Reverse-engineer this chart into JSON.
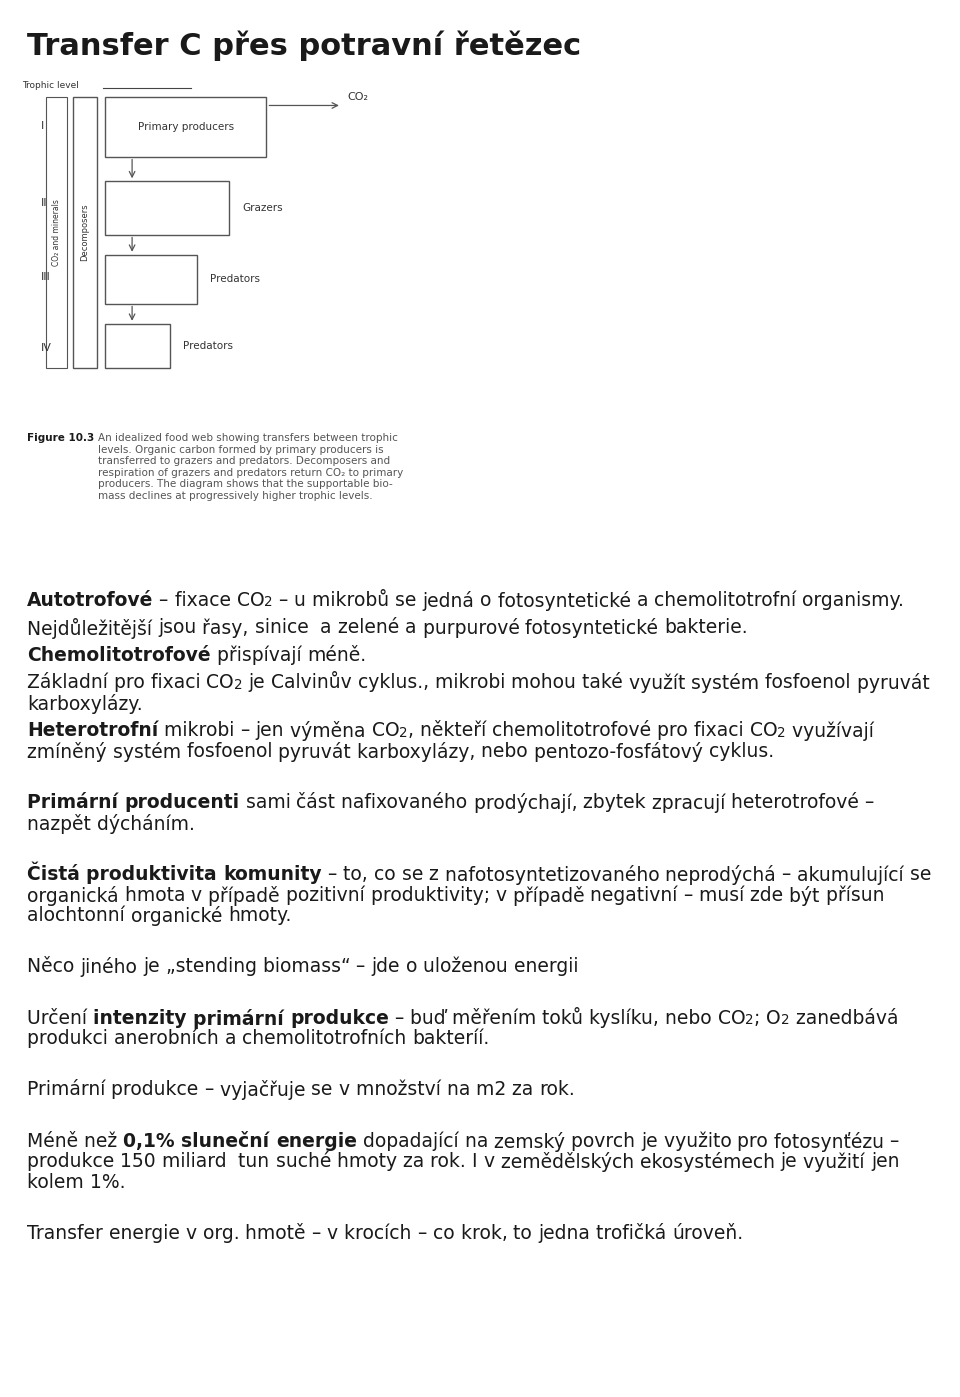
{
  "title": "Transfer C přes potravní řetězec",
  "title_fontsize": 22,
  "bg_color": "#ffffff",
  "text_color": "#1a1a1a",
  "body_fontsize": 13.5,
  "fig_caption_bold": "Figure 10.3",
  "fig_caption_text": "An idealized food web showing transfers between trophic\nlevels. Organic carbon formed by primary producers is\ntransferred to grazers and predators. Decomposers and\nrespiration of grazers and predators return CO₂ to primary\nproducers. The diagram shows that the supportable bio-\nmass declines at progressively higher trophic levels.",
  "paragraphs": [
    {
      "parts": [
        {
          "text": "Autotrofové",
          "bold": true,
          "sub": false
        },
        {
          "text": " – fixace CO",
          "bold": false,
          "sub": false
        },
        {
          "text": "2",
          "bold": false,
          "sub": true
        },
        {
          "text": " – u mikrobů se jedná o fotosyntetické a chemolitotrofní organismy.",
          "bold": false,
          "sub": false
        }
      ],
      "space_before": 0.025
    },
    {
      "parts": [
        {
          "text": "Nejdůležitější jsou řasy, sinice  a zelené a purpurové fotosyntetické bakterie.",
          "bold": false,
          "sub": false
        }
      ],
      "space_before": 0.005
    },
    {
      "parts": [
        {
          "text": "Chemolitotrofové",
          "bold": true,
          "sub": false
        },
        {
          "text": " přispívají méně.",
          "bold": false,
          "sub": false
        }
      ],
      "space_before": 0.005
    },
    {
      "parts": [
        {
          "text": "Základní pro fixaci CO",
          "bold": false,
          "sub": false
        },
        {
          "text": "2",
          "bold": false,
          "sub": true
        },
        {
          "text": " je Calvinův cyklus., mikrobi mohou také využít systém fosfoenol pyruvát karboxylázy.",
          "bold": false,
          "sub": false
        }
      ],
      "space_before": 0.005
    },
    {
      "parts": [
        {
          "text": "Heterotrofní",
          "bold": true,
          "sub": false
        },
        {
          "text": " mikrobi – jen výměna CO",
          "bold": false,
          "sub": false
        },
        {
          "text": "2",
          "bold": false,
          "sub": true
        },
        {
          "text": ", někteří chemolitotrofové pro fixaci CO",
          "bold": false,
          "sub": false
        },
        {
          "text": "2",
          "bold": false,
          "sub": true
        },
        {
          "text": " využívají zmíněný systém fosfoenol pyruvát karboxylázy, nebo pentozo-fosfátový cyklus.",
          "bold": false,
          "sub": false
        }
      ],
      "space_before": 0.005
    },
    {
      "parts": [
        {
          "text": "Primární producenti",
          "bold": true,
          "sub": false
        },
        {
          "text": " sami část nafixovaného prodýchají, zbytek zpracují heterotrofové – nazpět dýcháním.",
          "bold": false,
          "sub": false
        }
      ],
      "space_before": 0.022
    },
    {
      "parts": [
        {
          "text": "Čistá produktivita komunity",
          "bold": true,
          "sub": false
        },
        {
          "text": " – to, co se z nafotosyntetizovaného neprodýchá – akumulující se organická hmota v případě pozitivní produktivity; v případě negativní – musí zde být přísun alochtonní organické hmoty.",
          "bold": false,
          "sub": false
        }
      ],
      "space_before": 0.022
    },
    {
      "parts": [
        {
          "text": "Něco jiného je „stending biomass“ – jde o uloženou energii",
          "bold": false,
          "sub": false
        }
      ],
      "space_before": 0.022
    },
    {
      "parts": [
        {
          "text": "Určení ",
          "bold": false,
          "sub": false
        },
        {
          "text": "intenzity primární produkce",
          "bold": true,
          "sub": false
        },
        {
          "text": " – buď měřením toků kyslíku, nebo CO",
          "bold": false,
          "sub": false
        },
        {
          "text": "2",
          "bold": false,
          "sub": true
        },
        {
          "text": "; O",
          "bold": false,
          "sub": false
        },
        {
          "text": "2",
          "bold": false,
          "sub": true
        },
        {
          "text": " zanedbává produkci anerobních a chemolitotrofních bakteríí.",
          "bold": false,
          "sub": false
        }
      ],
      "space_before": 0.022
    },
    {
      "parts": [
        {
          "text": "Primární produkce – vyjačřuje se v množství na m2 za rok.",
          "bold": false,
          "sub": false
        }
      ],
      "space_before": 0.022
    },
    {
      "parts": [
        {
          "text": "Méně než ",
          "bold": false,
          "sub": false
        },
        {
          "text": "0,1% sluneční energie",
          "bold": true,
          "sub": false
        },
        {
          "text": " dopadající na zemský povrch je využito pro fotosynťézu – produkce 150 miliard  tun suché hmoty za rok. I v zemědělských ekosystémech je využití jen kolem 1%.",
          "bold": false,
          "sub": false
        }
      ],
      "space_before": 0.022
    },
    {
      "parts": [
        {
          "text": "Transfer energie v org. hmotě – v krocích – co krok, to jedna trofičká úroveň.",
          "bold": false,
          "sub": false
        }
      ],
      "space_before": 0.022
    }
  ]
}
